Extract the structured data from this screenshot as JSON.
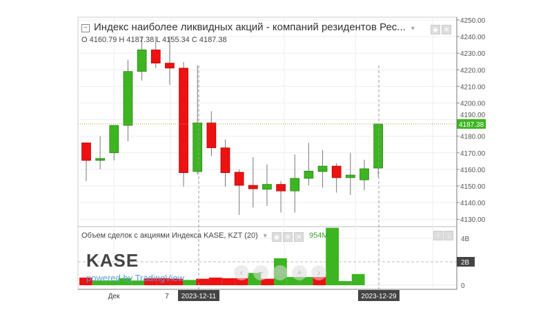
{
  "legend": {
    "title": "Индекс наиболее ликвидных акций - компаний резидентов Рес...",
    "ohlc": "O 4160.79 H 4187.38 L 4155.34 C 4187.38"
  },
  "volume_legend": {
    "title": "Объем сделок с акциями Индекса KASE, KZT (20)",
    "value": "954M"
  },
  "branding": {
    "logo": "KASE",
    "powered": "powered by TradingView"
  },
  "nav_buttons": [
    "‹",
    "−",
    "↻",
    "+",
    "›"
  ],
  "colors": {
    "up": "#3cb521",
    "down": "#ee1111",
    "last_price": "#3cb521",
    "axis_label_bg": "#444444"
  },
  "price_axis": {
    "ticks": [
      "4250.00",
      "4240.00",
      "4230.00",
      "4220.00",
      "4210.00",
      "4200.00",
      "4190.00",
      "4180.00",
      "4170.00",
      "4160.00",
      "4150.00",
      "4140.00",
      "4130.00"
    ],
    "last_price": "4187.38"
  },
  "volume_axis": {
    "ticks": [
      "4B",
      "2B",
      "0"
    ]
  },
  "time_axis": {
    "labels": [
      "Дек",
      "7"
    ],
    "crosshair_labels": [
      "2023-12-11",
      "2023-12-29"
    ]
  },
  "chart_data": {
    "type": "candlestick",
    "ylim": [
      4127,
      4252
    ],
    "candles": [
      {
        "o": 4176,
        "h": 4176,
        "l": 4153,
        "c": 4165.4
      },
      {
        "o": 4165.4,
        "h": 4180,
        "l": 4160,
        "c": 4166.6
      },
      {
        "o": 4170,
        "h": 4186.5,
        "l": 4165.4,
        "c": 4186.5
      },
      {
        "o": 4186.5,
        "h": 4226,
        "l": 4177,
        "c": 4219
      },
      {
        "o": 4219,
        "h": 4240,
        "l": 4213.5,
        "c": 4232
      },
      {
        "o": 4232,
        "h": 4240,
        "l": 4221,
        "c": 4224
      },
      {
        "o": 4224,
        "h": 4240,
        "l": 4211,
        "c": 4221
      },
      {
        "o": 4221,
        "h": 4224.7,
        "l": 4149.6,
        "c": 4158
      },
      {
        "o": 4158.7,
        "h": 4222.6,
        "l": 4157,
        "c": 4188
      },
      {
        "o": 4188,
        "h": 4195,
        "l": 4168,
        "c": 4173
      },
      {
        "o": 4173,
        "h": 4178,
        "l": 4149.6,
        "c": 4158
      },
      {
        "o": 4158.3,
        "h": 4160,
        "l": 4132.6,
        "c": 4150.4
      },
      {
        "o": 4150.4,
        "h": 4167.4,
        "l": 4137,
        "c": 4148.3
      },
      {
        "o": 4148,
        "h": 4163,
        "l": 4138,
        "c": 4151
      },
      {
        "o": 4151,
        "h": 4153,
        "l": 4134,
        "c": 4147
      },
      {
        "o": 4147,
        "h": 4169,
        "l": 4134,
        "c": 4154.6
      },
      {
        "o": 4154.6,
        "h": 4176,
        "l": 4150.4,
        "c": 4159
      },
      {
        "o": 4158.7,
        "h": 4171.6,
        "l": 4149,
        "c": 4162
      },
      {
        "o": 4162,
        "h": 4163.7,
        "l": 4146,
        "c": 4155
      },
      {
        "o": 4155,
        "h": 4170,
        "l": 4144.6,
        "c": 4156.6
      },
      {
        "o": 4153.7,
        "h": 4165.8,
        "l": 4147.5,
        "c": 4160.4
      },
      {
        "o": 4160.79,
        "h": 4187.38,
        "l": 4155.34,
        "c": 4187.38
      }
    ],
    "volume_unit": "B",
    "volume": [
      {
        "v": 0.65,
        "dir": "down"
      },
      {
        "v": 0.4,
        "dir": "up"
      },
      {
        "v": 0.4,
        "dir": "up"
      },
      {
        "v": 0.6,
        "dir": "up"
      },
      {
        "v": 0.4,
        "dir": "up"
      },
      {
        "v": 0.6,
        "dir": "down"
      },
      {
        "v": 0.6,
        "dir": "down"
      },
      {
        "v": 0.55,
        "dir": "down"
      },
      {
        "v": 0.45,
        "dir": "up"
      },
      {
        "v": 0.55,
        "dir": "down"
      },
      {
        "v": 0.65,
        "dir": "down"
      },
      {
        "v": 0.6,
        "dir": "down"
      },
      {
        "v": 0.6,
        "dir": "down"
      },
      {
        "v": 1.05,
        "dir": "up"
      },
      {
        "v": 0.55,
        "dir": "down"
      },
      {
        "v": 2.3,
        "dir": "up"
      },
      {
        "v": 0.7,
        "dir": "up"
      },
      {
        "v": 0.7,
        "dir": "up"
      },
      {
        "v": 0.7,
        "dir": "down"
      },
      {
        "v": 4.9,
        "dir": "up"
      },
      {
        "v": 0.35,
        "dir": "up"
      },
      {
        "v": 0.954,
        "dir": "up"
      }
    ]
  }
}
